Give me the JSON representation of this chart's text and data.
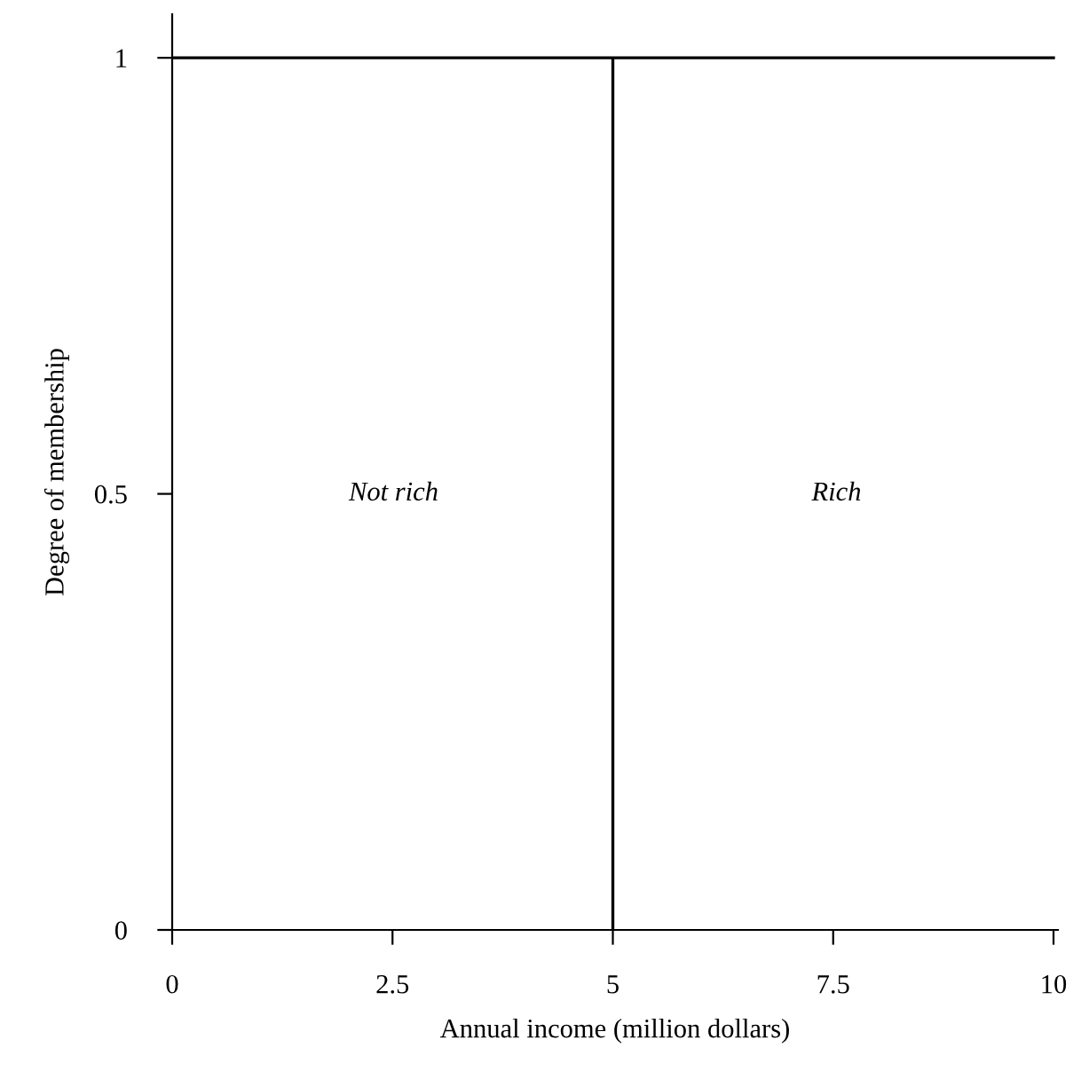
{
  "chart_data": {
    "type": "line",
    "xlabel": "Annual income (million dollars)",
    "ylabel": "Degree of membership",
    "series": [
      {
        "color": "#000000",
        "x": [
          0,
          5,
          5,
          5,
          10
        ],
        "values": [
          1,
          1,
          0,
          1,
          1
        ]
      }
    ],
    "xlim": [
      0,
      10.05
    ],
    "ylim": [
      0,
      1.05
    ],
    "xticks": [
      0,
      2.5,
      5,
      7.5,
      10
    ],
    "yticks": [
      0,
      0.5,
      1
    ],
    "annotations": [
      "Not rich",
      "Rich"
    ],
    "grid": false,
    "legend": false,
    "marker": "none",
    "line_style": "solid"
  }
}
